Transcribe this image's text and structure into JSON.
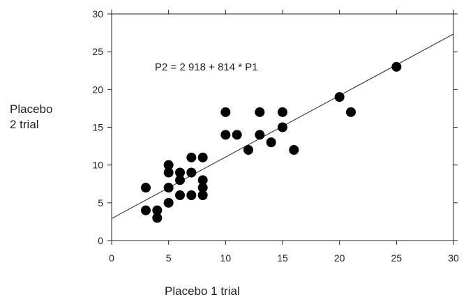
{
  "chart_data": {
    "type": "scatter",
    "xlabel": "Placebo 1 trial",
    "ylabel_line1": "Placebo",
    "ylabel_line2": "2 trial",
    "annotation": "P2 = 2 918 +  814 * P1",
    "xlim": [
      0,
      30
    ],
    "ylim": [
      0,
      30
    ],
    "xticks": [
      0,
      5,
      10,
      15,
      20,
      25,
      30
    ],
    "yticks": [
      0,
      5,
      10,
      15,
      20,
      25,
      30
    ],
    "grid": false,
    "regression": {
      "intercept": 2.918,
      "slope": 0.814
    },
    "points": [
      [
        3,
        7
      ],
      [
        3,
        4
      ],
      [
        4,
        4
      ],
      [
        4,
        3
      ],
      [
        5,
        10
      ],
      [
        5,
        9
      ],
      [
        5,
        7
      ],
      [
        5,
        5
      ],
      [
        6,
        9
      ],
      [
        6,
        8
      ],
      [
        6,
        6
      ],
      [
        7,
        11
      ],
      [
        7,
        9
      ],
      [
        7,
        6
      ],
      [
        8,
        11
      ],
      [
        8,
        8
      ],
      [
        8,
        7
      ],
      [
        8,
        6
      ],
      [
        10,
        17
      ],
      [
        10,
        14
      ],
      [
        11,
        14
      ],
      [
        12,
        12
      ],
      [
        13,
        17
      ],
      [
        13,
        14
      ],
      [
        14,
        13
      ],
      [
        15,
        17
      ],
      [
        15,
        15
      ],
      [
        16,
        12
      ],
      [
        20,
        19
      ],
      [
        21,
        17
      ],
      [
        25,
        23
      ]
    ]
  }
}
